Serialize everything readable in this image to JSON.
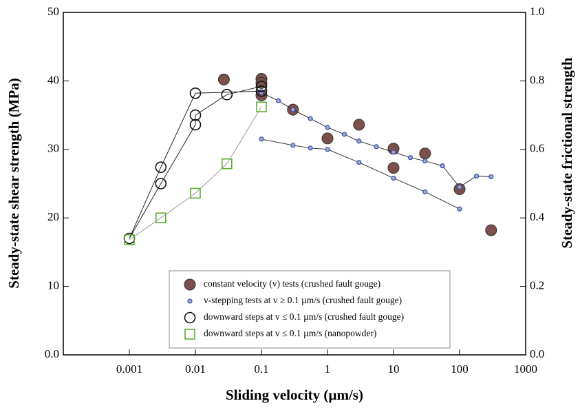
{
  "chart_data": {
    "type": "scatter",
    "x_label": "Sliding velocity (µm/s)",
    "y_label": "Steady-state shear strength (MPa)",
    "y2_label": "Steady-state frictional strength",
    "xscale": "log",
    "xlim": [
      0.0001,
      1000
    ],
    "xticks": [
      0.001,
      0.01,
      0.1,
      1,
      10,
      100,
      1000
    ],
    "ylim": [
      0,
      50
    ],
    "yticks": [
      {
        "value": 0,
        "label": "0.0"
      },
      10,
      20,
      30,
      40,
      50
    ],
    "y2lim": [
      0,
      1
    ],
    "y2ticks": [
      {
        "value": 0,
        "label": "0.0"
      },
      0.2,
      0.4,
      0.6,
      0.8,
      {
        "value": 1,
        "label": "1.0"
      }
    ],
    "legend": "lower center",
    "series": [
      {
        "name": "constant velocity (v) tests (crushed fault gouge)",
        "color": "#7d4f4b",
        "marker": "circle-filled",
        "line": false,
        "x": [
          0.027,
          0.1,
          0.1,
          0.1,
          0.3,
          1,
          3,
          10,
          10,
          30,
          100,
          300
        ],
        "values": [
          40.2,
          40.3,
          39.7,
          37.9,
          35.8,
          31.6,
          33.6,
          30.1,
          27.3,
          29.4,
          24.2,
          18.2
        ]
      },
      {
        "name": "v-stepping tests at v ≥ 0.1 µm/s (crushed fault gouge)",
        "color": "#3a4fa8",
        "marker": "circle-small",
        "line": true,
        "x": [
          0.1,
          0.18,
          0.3,
          0.55,
          1,
          1.8,
          3,
          5.5,
          10,
          18,
          30,
          55,
          100,
          180,
          300,
          null,
          0.1,
          0.3,
          0.55,
          1,
          3,
          10,
          30,
          100
        ],
        "values": [
          38.3,
          37.1,
          35.8,
          34.5,
          33.2,
          32.2,
          31.2,
          30.4,
          29.6,
          28.8,
          28.3,
          27.6,
          24.5,
          26.1,
          26.0,
          null,
          31.5,
          30.6,
          30.2,
          30.0,
          28.1,
          25.8,
          23.8,
          21.3
        ]
      },
      {
        "name": "downward steps at v ≤ 0.1 µm/s (crushed fault gouge)",
        "color": "#111111",
        "marker": "circle-open",
        "line": true,
        "x": [
          0.1,
          0.01,
          0.003,
          0.001,
          0.003,
          0.01,
          0.01,
          0.03,
          0.1
        ],
        "values": [
          38.5,
          38.2,
          27.4,
          17.0,
          25.0,
          33.6,
          35.0,
          38.0,
          39.2
        ]
      },
      {
        "name": "downward steps at v ≤ 0.1 µm/s (nanopowder)",
        "color": "#5aae32",
        "marker": "square-open",
        "line": true,
        "x": [
          0.1,
          0.03,
          0.01,
          0.003,
          0.001
        ],
        "values": [
          36.2,
          27.9,
          23.6,
          20.0,
          16.8
        ]
      }
    ]
  }
}
